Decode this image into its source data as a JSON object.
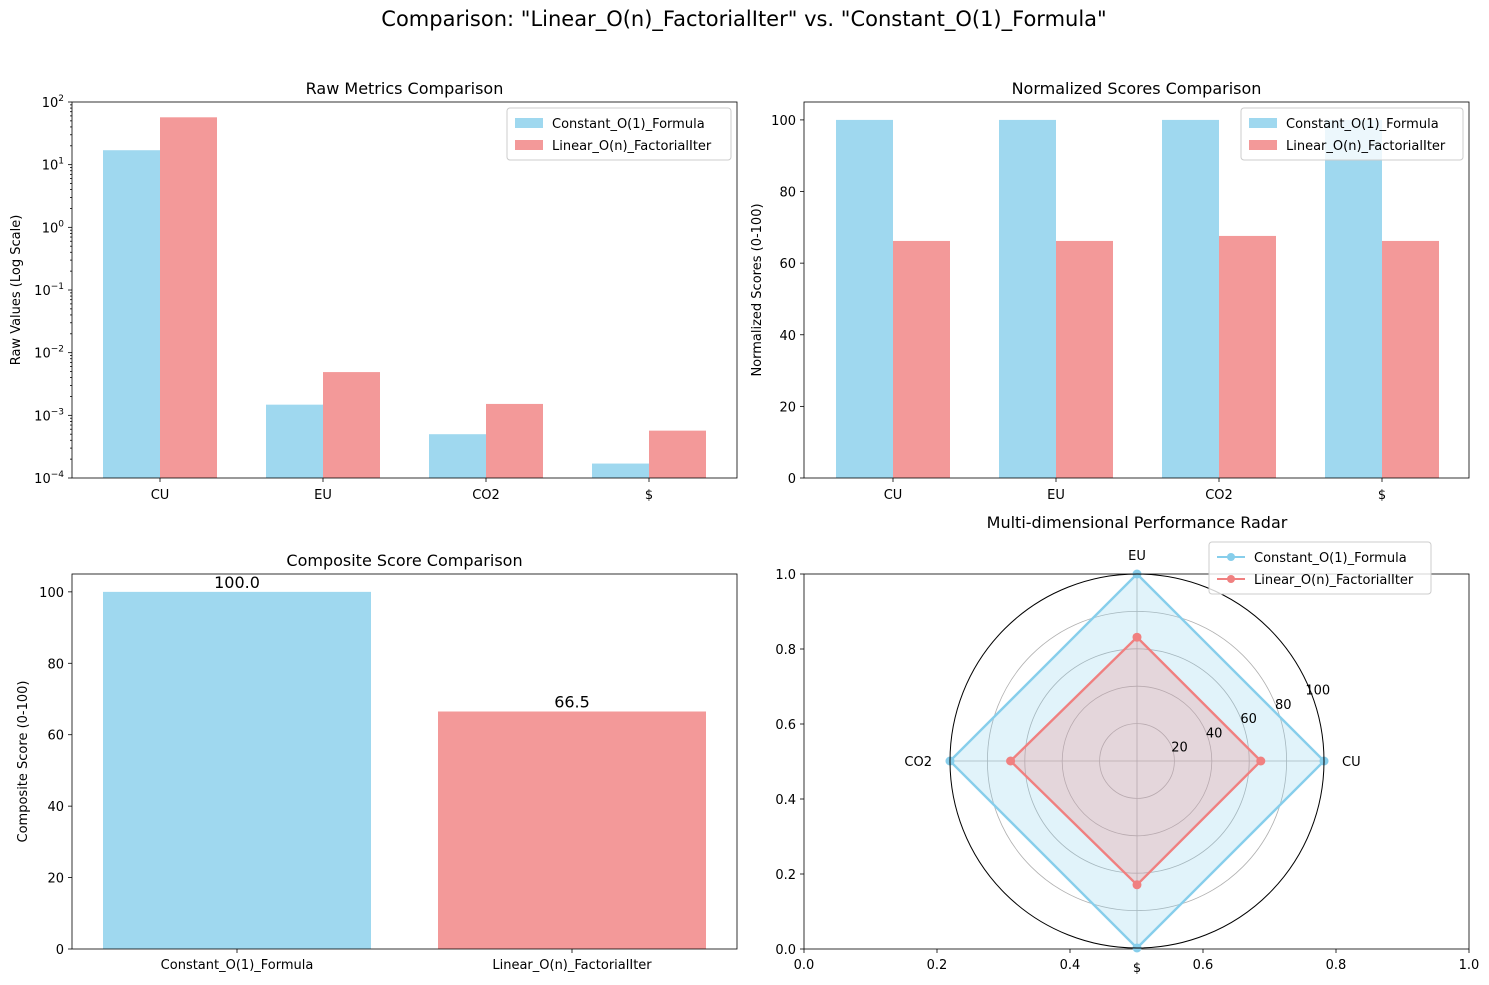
{
  "suptitle": "Comparison: \"Linear_O(n)_FactorialIter\" vs. \"Constant_O(1)_Formula\"",
  "colors": {
    "a": "#87ceeb",
    "b": "#f08080",
    "a_alpha": 0.8,
    "b_alpha": 0.8
  },
  "chart_data": [
    {
      "id": "raw",
      "type": "bar",
      "title": "Raw Metrics Comparison",
      "xlabel": "",
      "ylabel": "Raw Values (Log Scale)",
      "yscale": "log",
      "ylim": [
        0.0001,
        100
      ],
      "yticks": [
        {
          "v": 0.0001,
          "base": "10",
          "exp": "−4"
        },
        {
          "v": 0.001,
          "base": "10",
          "exp": "−3"
        },
        {
          "v": 0.01,
          "base": "10",
          "exp": "−2"
        },
        {
          "v": 0.1,
          "base": "10",
          "exp": "−1"
        },
        {
          "v": 1,
          "base": "10",
          "exp": "0"
        },
        {
          "v": 10,
          "base": "10",
          "exp": "1"
        },
        {
          "v": 100,
          "base": "10",
          "exp": "2"
        }
      ],
      "categories": [
        "CU",
        "EU",
        "CO2",
        "$"
      ],
      "series": [
        {
          "name": "Constant_O(1)_Formula",
          "values": [
            17,
            0.00148,
            0.0005,
            0.00017
          ]
        },
        {
          "name": "Linear_O(n)_FactorialIter",
          "values": [
            57,
            0.0049,
            0.00152,
            0.00057
          ]
        }
      ],
      "legend": "upper-right"
    },
    {
      "id": "norm",
      "type": "bar",
      "title": "Normalized Scores Comparison",
      "xlabel": "",
      "ylabel": "Normalized Scores (0-100)",
      "ylim": [
        0,
        105
      ],
      "yticks": [
        0,
        20,
        40,
        60,
        80,
        100
      ],
      "categories": [
        "CU",
        "EU",
        "CO2",
        "$"
      ],
      "series": [
        {
          "name": "Constant_O(1)_Formula",
          "values": [
            100,
            100,
            100,
            100
          ]
        },
        {
          "name": "Linear_O(n)_FactorialIter",
          "values": [
            66.2,
            66.2,
            67.6,
            66.2
          ]
        }
      ],
      "legend": "upper-right"
    },
    {
      "id": "comp",
      "type": "bar",
      "title": "Composite Score Comparison",
      "xlabel": "",
      "ylabel": "Composite Score (0-100)",
      "ylim": [
        0,
        105
      ],
      "yticks": [
        0,
        20,
        40,
        60,
        80,
        100
      ],
      "categories": [
        "Constant_O(1)_Formula",
        "Linear_O(n)_FactorialIter"
      ],
      "values": [
        100.0,
        66.5
      ],
      "data_labels": [
        "100.0",
        "66.5"
      ]
    },
    {
      "id": "radar",
      "type": "radar",
      "title": "Multi-dimensional Performance Radar",
      "axes": [
        "CU",
        "EU",
        "CO2",
        "$"
      ],
      "rmax": 100,
      "rticks": [
        20,
        40,
        60,
        80,
        100
      ],
      "series": [
        {
          "name": "Constant_O(1)_Formula",
          "values": [
            100,
            100,
            100,
            100
          ]
        },
        {
          "name": "Linear_O(n)_FactorialIter",
          "values": [
            66.2,
            66.2,
            67.6,
            66.2
          ]
        }
      ],
      "cart_xticks": [
        "0.0",
        "0.2",
        "0.4",
        "0.6",
        "0.8",
        "1.0"
      ],
      "cart_yticks": [
        "0.0",
        "0.2",
        "0.4",
        "0.6",
        "0.8",
        "1.0"
      ],
      "legend": "upper-right"
    }
  ]
}
